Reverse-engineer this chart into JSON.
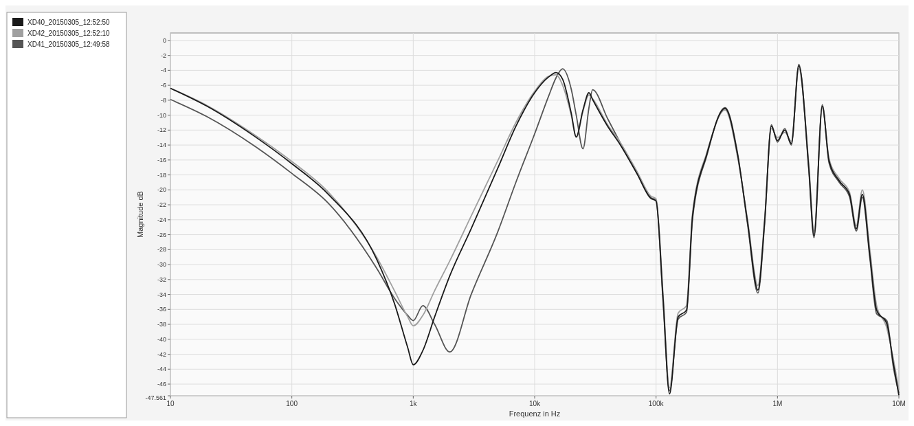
{
  "chart_data": {
    "type": "line",
    "xlabel": "Frequenz in Hz",
    "ylabel": "Magnitude dB",
    "log": "x",
    "grid": true,
    "legend": "left",
    "line_style": "solid",
    "marker": "none",
    "x": [
      10,
      20,
      50,
      100,
      200,
      500,
      700,
      900,
      1000,
      1200,
      1500,
      2000,
      3000,
      5000,
      7000,
      10000,
      13000,
      15000,
      17000,
      20000,
      22000,
      25000,
      28000,
      30000,
      40000,
      50000,
      70000,
      90000,
      100000,
      114000,
      129000,
      152000,
      178000,
      200000,
      262000,
      370000,
      468000,
      567000,
      690000,
      783000,
      891000,
      1000000,
      1150000,
      1300000,
      1500000,
      1810000,
      2000000,
      2340000,
      2660000,
      3230000,
      3920000,
      4460000,
      5000000,
      5770000,
      6560000,
      7950000,
      9040000,
      10000000
    ],
    "xlim": [
      10,
      10000000
    ],
    "xticks": [
      10,
      100,
      {
        "value": 1000,
        "label": "1k"
      },
      {
        "value": 10000,
        "label": "10k"
      },
      {
        "value": 100000,
        "label": "100k"
      },
      {
        "value": 1000000,
        "label": "1M"
      },
      {
        "value": 10000000,
        "label": "10M"
      }
    ],
    "ylim": [
      -47.561,
      1
    ],
    "yticks": [
      {
        "value": -47.561,
        "label": "-47.561"
      },
      -46,
      -44,
      -42,
      -40,
      -38,
      -36,
      -34,
      -32,
      -30,
      -28,
      -26,
      -24,
      -22,
      -20,
      -18,
      -16,
      -14,
      -12,
      -10,
      -8,
      -6,
      -4,
      -2,
      0
    ],
    "series": [
      {
        "name": "XD40_20150305_12:52:50",
        "color": "#1a1a1a",
        "values": [
          -6.4,
          -8.8,
          -12.9,
          -16.5,
          -20.6,
          -29.3,
          -35.2,
          -41.1,
          -43.4,
          -41.5,
          -37.0,
          -31.5,
          -25.2,
          -17.0,
          -11.5,
          -7.0,
          -4.9,
          -4.3,
          -5.2,
          -9.7,
          -12.9,
          -9.3,
          -7.0,
          -7.9,
          -11.5,
          -13.8,
          -17.9,
          -21.1,
          -21.5,
          -34.3,
          -47.3,
          -37.0,
          -36.1,
          -23.4,
          -15.2,
          -9.1,
          -15.2,
          -24.3,
          -33.4,
          -24.3,
          -11.5,
          -13.4,
          -12.0,
          -13.8,
          -3.4,
          -17.0,
          -26.1,
          -8.8,
          -16.1,
          -18.8,
          -20.6,
          -25.2,
          -20.6,
          -28.8,
          -36.1,
          -37.9,
          -43.4,
          -47.5
        ]
      },
      {
        "name": "XD42_20150305_12:52:10",
        "color": "#a0a0a0",
        "values": [
          -6.4,
          -8.7,
          -12.7,
          -16.2,
          -20.3,
          -29.0,
          -33.5,
          -37.0,
          -38.2,
          -36.8,
          -33.5,
          -29.5,
          -23.5,
          -16.0,
          -11.0,
          -6.8,
          -4.8,
          -4.6,
          -6.0,
          -10.0,
          -13.0,
          -9.5,
          -7.3,
          -7.8,
          -11.3,
          -13.5,
          -17.6,
          -20.8,
          -21.2,
          -33.8,
          -46.5,
          -36.5,
          -35.5,
          -23.0,
          -15.0,
          -9.3,
          -15.5,
          -24.0,
          -32.8,
          -24.0,
          -11.8,
          -13.0,
          -12.3,
          -13.5,
          -3.8,
          -16.5,
          -25.5,
          -9.0,
          -15.8,
          -18.5,
          -20.3,
          -24.8,
          -20.0,
          -28.0,
          -35.5,
          -38.5,
          -42.8,
          -46.8
        ]
      },
      {
        "name": "XD41_20150305_12:49:58",
        "color": "#555555",
        "values": [
          -7.9,
          -10.2,
          -14.2,
          -17.8,
          -21.8,
          -30.5,
          -34.5,
          -36.8,
          -37.5,
          -35.5,
          -38.0,
          -41.7,
          -34.0,
          -25.5,
          -19.0,
          -12.5,
          -7.5,
          -5.0,
          -3.8,
          -6.5,
          -10.0,
          -14.5,
          -9.0,
          -6.6,
          -10.5,
          -13.5,
          -17.8,
          -21.0,
          -21.4,
          -34.8,
          -46.9,
          -37.3,
          -36.4,
          -23.8,
          -15.4,
          -9.0,
          -15.0,
          -24.6,
          -33.8,
          -24.6,
          -11.3,
          -13.6,
          -11.8,
          -14.0,
          -3.2,
          -17.3,
          -26.4,
          -8.6,
          -16.4,
          -19.0,
          -20.9,
          -25.5,
          -21.0,
          -29.2,
          -36.6,
          -37.5,
          -43.9,
          -47.2
        ]
      }
    ]
  }
}
